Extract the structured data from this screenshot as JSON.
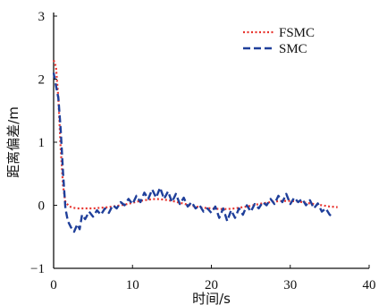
{
  "chart_data": {
    "type": "line",
    "xlabel": "时间/s",
    "ylabel": "距离偏差/m",
    "xlim": [
      0,
      40
    ],
    "ylim": [
      -1,
      3
    ],
    "x_ticks": [
      "0",
      "10",
      "20",
      "30",
      "40"
    ],
    "y_ticks": [
      "−1",
      "0",
      "1",
      "2",
      "3"
    ],
    "grid": false,
    "legend_position": "top-right",
    "series": [
      {
        "name": "FSMC",
        "color": "#e8342e",
        "style": "dotted",
        "x": [
          0,
          0.3,
          0.6,
          0.9,
          1.2,
          1.5,
          2.0,
          2.5,
          3,
          4,
          5,
          6,
          7,
          8,
          9,
          10,
          11,
          12,
          13,
          14,
          15,
          16,
          17,
          18,
          19,
          20,
          21,
          22,
          23,
          24,
          25,
          26,
          27,
          28,
          29,
          30,
          31,
          32,
          33,
          34,
          35,
          36
        ],
        "y": [
          2.3,
          2.2,
          1.7,
          0.9,
          0.3,
          0.05,
          -0.02,
          -0.04,
          -0.05,
          -0.05,
          -0.05,
          -0.04,
          -0.03,
          -0.01,
          0.01,
          0.04,
          0.07,
          0.09,
          0.1,
          0.09,
          0.07,
          0.04,
          0.01,
          -0.02,
          -0.04,
          -0.05,
          -0.06,
          -0.06,
          -0.05,
          -0.03,
          -0.01,
          0.02,
          0.04,
          0.06,
          0.07,
          0.07,
          0.06,
          0.04,
          0.02,
          0.0,
          -0.02,
          -0.03
        ]
      },
      {
        "name": "SMC",
        "color": "#1f3f9a",
        "style": "dashed",
        "x": [
          0,
          0.3,
          0.6,
          0.9,
          1.2,
          1.5,
          1.8,
          2.2,
          2.6,
          3.0,
          3.3,
          3.6,
          4,
          4.5,
          5,
          5.5,
          6,
          6.5,
          7,
          7.5,
          8,
          8.5,
          9,
          9.5,
          10,
          10.5,
          11,
          11.5,
          12,
          12.5,
          13,
          13.5,
          14,
          14.5,
          15,
          15.5,
          16,
          16.5,
          17,
          17.5,
          18,
          18.5,
          19,
          19.5,
          20,
          20.5,
          21,
          21.5,
          22,
          22.5,
          23,
          23.5,
          24,
          24.5,
          25,
          25.5,
          26,
          26.5,
          27,
          27.5,
          28,
          28.5,
          29,
          29.5,
          30,
          30.5,
          31,
          31.5,
          32,
          32.5,
          33,
          33.5,
          34,
          34.5,
          35,
          35.5
        ],
        "y": [
          2.1,
          1.9,
          1.7,
          1.2,
          0.5,
          -0.05,
          -0.25,
          -0.35,
          -0.42,
          -0.3,
          -0.38,
          -0.15,
          -0.22,
          -0.1,
          -0.18,
          -0.08,
          -0.15,
          -0.05,
          -0.12,
          0.0,
          -0.05,
          0.05,
          0.0,
          0.1,
          0.02,
          0.15,
          0.05,
          0.2,
          0.1,
          0.25,
          0.12,
          0.28,
          0.1,
          0.22,
          0.05,
          0.18,
          0.02,
          0.12,
          -0.02,
          0.05,
          -0.05,
          0.0,
          -0.1,
          -0.05,
          -0.12,
          -0.02,
          -0.2,
          -0.05,
          -0.25,
          -0.08,
          -0.2,
          -0.05,
          -0.15,
          0.0,
          -0.1,
          0.02,
          -0.05,
          0.05,
          0.0,
          0.1,
          0.02,
          0.15,
          0.05,
          0.18,
          0.02,
          0.12,
          0.05,
          0.1,
          0.0,
          0.08,
          -0.05,
          0.03,
          -0.1,
          -0.05,
          -0.15,
          -0.2
        ]
      }
    ]
  }
}
